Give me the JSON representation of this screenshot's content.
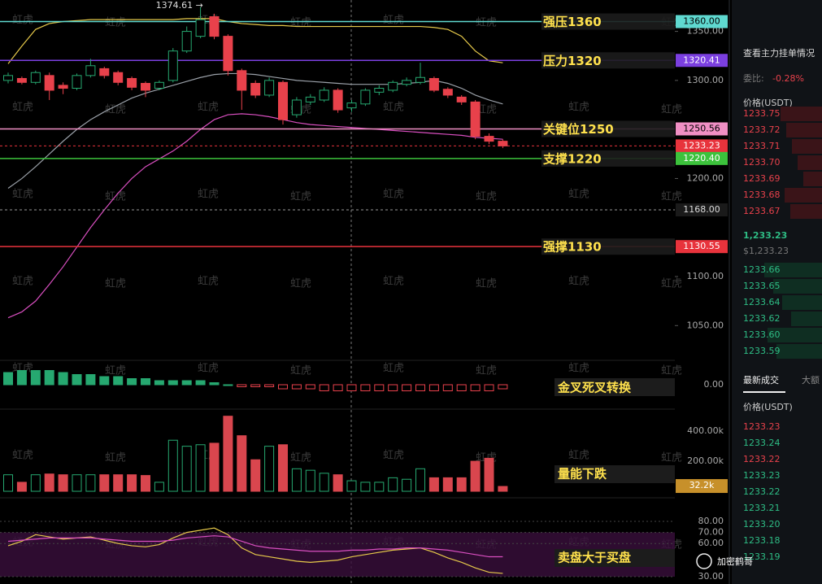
{
  "price_chart": {
    "ylim": [
      1032,
      1382
    ],
    "yticks": [
      {
        "value": 1350,
        "label": "1350.00"
      },
      {
        "value": 1300,
        "label": "1300.00"
      },
      {
        "value": 1200,
        "label": "1200.00"
      },
      {
        "value": 1100,
        "label": "1100.00"
      },
      {
        "value": 1050,
        "label": "1050.00"
      }
    ],
    "high_label": "1374.61 →",
    "candles": [
      {
        "o": 1300,
        "c": 1305,
        "h": 1308,
        "l": 1297
      },
      {
        "o": 1302,
        "c": 1298,
        "h": 1304,
        "l": 1296
      },
      {
        "o": 1298,
        "c": 1308,
        "h": 1310,
        "l": 1296
      },
      {
        "o": 1305,
        "c": 1290,
        "h": 1308,
        "l": 1280
      },
      {
        "o": 1295,
        "c": 1292,
        "h": 1298,
        "l": 1286
      },
      {
        "o": 1292,
        "c": 1305,
        "h": 1307,
        "l": 1290
      },
      {
        "o": 1305,
        "c": 1315,
        "h": 1322,
        "l": 1303
      },
      {
        "o": 1312,
        "c": 1305,
        "h": 1314,
        "l": 1302
      },
      {
        "o": 1308,
        "c": 1298,
        "h": 1310,
        "l": 1295
      },
      {
        "o": 1302,
        "c": 1293,
        "h": 1304,
        "l": 1290
      },
      {
        "o": 1297,
        "c": 1290,
        "h": 1299,
        "l": 1283
      },
      {
        "o": 1292,
        "c": 1298,
        "h": 1300,
        "l": 1290
      },
      {
        "o": 1300,
        "c": 1330,
        "h": 1333,
        "l": 1298
      },
      {
        "o": 1330,
        "c": 1350,
        "h": 1355,
        "l": 1328
      },
      {
        "o": 1345,
        "c": 1362,
        "h": 1374.61,
        "l": 1343
      },
      {
        "o": 1365,
        "c": 1345,
        "h": 1368,
        "l": 1342
      },
      {
        "o": 1345,
        "c": 1310,
        "h": 1347,
        "l": 1305
      },
      {
        "o": 1310,
        "c": 1290,
        "h": 1312,
        "l": 1270
      },
      {
        "o": 1297,
        "c": 1285,
        "h": 1300,
        "l": 1282
      },
      {
        "o": 1285,
        "c": 1300,
        "h": 1303,
        "l": 1283
      },
      {
        "o": 1298,
        "c": 1260,
        "h": 1300,
        "l": 1255
      },
      {
        "o": 1265,
        "c": 1280,
        "h": 1283,
        "l": 1262
      },
      {
        "o": 1278,
        "c": 1283,
        "h": 1286,
        "l": 1275
      },
      {
        "o": 1280,
        "c": 1290,
        "h": 1293,
        "l": 1278
      },
      {
        "o": 1290,
        "c": 1270,
        "h": 1292,
        "l": 1267
      },
      {
        "o": 1272,
        "c": 1277,
        "h": 1280,
        "l": 1268
      },
      {
        "o": 1276,
        "c": 1290,
        "h": 1292,
        "l": 1274
      },
      {
        "o": 1288,
        "c": 1292,
        "h": 1295,
        "l": 1285
      },
      {
        "o": 1290,
        "c": 1298,
        "h": 1300,
        "l": 1288
      },
      {
        "o": 1296,
        "c": 1300,
        "h": 1303,
        "l": 1294
      },
      {
        "o": 1298,
        "c": 1303,
        "h": 1318,
        "l": 1296
      },
      {
        "o": 1302,
        "c": 1290,
        "h": 1304,
        "l": 1288
      },
      {
        "o": 1291,
        "c": 1285,
        "h": 1293,
        "l": 1282
      },
      {
        "o": 1283,
        "c": 1278,
        "h": 1285,
        "l": 1275
      },
      {
        "o": 1278,
        "c": 1243,
        "h": 1280,
        "l": 1240
      },
      {
        "o": 1243,
        "c": 1238,
        "h": 1246,
        "l": 1235
      },
      {
        "o": 1238,
        "c": 1233.23,
        "h": 1240,
        "l": 1231
      }
    ],
    "bands": [
      {
        "color": "#e6c94a",
        "values": [
          1317,
          1335,
          1352,
          1358,
          1360,
          1361,
          1362,
          1362,
          1362,
          1362,
          1362,
          1362,
          1362,
          1363,
          1363,
          1363,
          1360,
          1358,
          1357,
          1356,
          1356,
          1355,
          1355,
          1355,
          1355,
          1355,
          1355,
          1355,
          1355,
          1355,
          1355,
          1354,
          1352,
          1345,
          1330,
          1320,
          1318
        ]
      },
      {
        "color": "#9aa0a8",
        "values": [
          1190,
          1200,
          1212,
          1225,
          1238,
          1250,
          1260,
          1268,
          1275,
          1282,
          1287,
          1291,
          1295,
          1299,
          1303,
          1306,
          1307,
          1307,
          1306,
          1304,
          1302,
          1300,
          1299,
          1298,
          1297,
          1296,
          1296,
          1296,
          1296,
          1297,
          1298,
          1300,
          1297,
          1292,
          1285,
          1280,
          1276
        ]
      },
      {
        "color": "#d94fc0",
        "values": [
          1058,
          1064,
          1075,
          1092,
          1110,
          1130,
          1150,
          1168,
          1185,
          1200,
          1212,
          1220,
          1228,
          1238,
          1250,
          1260,
          1265,
          1266,
          1265,
          1263,
          1260,
          1257,
          1255,
          1254,
          1253,
          1252,
          1251,
          1250,
          1249,
          1248,
          1247,
          1246,
          1245,
          1244,
          1242,
          1241,
          1240
        ]
      }
    ],
    "levels": [
      {
        "value": 1360,
        "label": "1360.00",
        "color": "#5fd9d0",
        "note": "强压1360"
      },
      {
        "value": 1320.41,
        "label": "1320.41",
        "color": "#7b3fe0",
        "note": "压力1320"
      },
      {
        "value": 1250.56,
        "label": "1250.56",
        "color": "#f08fc4",
        "note": "关键位1250"
      },
      {
        "value": 1233.23,
        "label": "1233.23",
        "color": "#e8333c",
        "dashed": true
      },
      {
        "value": 1220.4,
        "label": "1220.40",
        "color": "#3cc23c",
        "note": "支撑1220"
      },
      {
        "value": 1168,
        "label": "1168.00",
        "color": "#9a9a9a",
        "dashed": true,
        "crosshair": true
      },
      {
        "value": 1130.55,
        "label": "1130.55",
        "color": "#e8333c",
        "note": "强撑1130"
      }
    ]
  },
  "macd": {
    "ylim": [
      -10,
      10
    ],
    "yticks": [
      {
        "value": 0,
        "label": "0.00"
      }
    ],
    "note": "金叉死叉转换",
    "values": [
      6,
      7,
      7,
      7,
      6,
      5,
      5,
      4,
      4,
      3,
      3,
      2,
      2,
      2,
      2,
      1,
      0,
      -1,
      -1,
      -1,
      -2,
      -2,
      -2,
      -3,
      -3,
      -3,
      -3,
      -3,
      -3,
      -3,
      -3,
      -3,
      -3,
      -3,
      -3,
      -3,
      -2
    ]
  },
  "volume": {
    "ylim": [
      0,
      520000
    ],
    "yticks": [
      {
        "value": 400000,
        "label": "400.00k"
      },
      {
        "value": 200000,
        "label": "200.00k"
      }
    ],
    "note": "量能下跌",
    "current": {
      "value": 32200,
      "label": "32.2k"
    },
    "values": [
      110000,
      60000,
      110000,
      115000,
      110000,
      110000,
      110000,
      110000,
      110000,
      110000,
      105000,
      60000,
      340000,
      300000,
      310000,
      320000,
      500000,
      370000,
      210000,
      300000,
      310000,
      150000,
      140000,
      120000,
      110000,
      70000,
      60000,
      60000,
      90000,
      80000,
      150000,
      90000,
      90000,
      90000,
      200000,
      220000,
      32200
    ]
  },
  "rsi": {
    "ylim": [
      23.4,
      90
    ],
    "yticks": [
      {
        "value": 80,
        "label": "80.00"
      },
      {
        "value": 70,
        "label": "70.00"
      },
      {
        "value": 60,
        "label": "60.00"
      },
      {
        "value": 30,
        "label": "30.00"
      }
    ],
    "band": [
      30,
      70
    ],
    "note": "卖盘大于买盘",
    "series": [
      {
        "color": "#e6c94a",
        "values": [
          58,
          62,
          68,
          66,
          64,
          65,
          66,
          63,
          60,
          58,
          57,
          59,
          65,
          70,
          72,
          74,
          68,
          56,
          50,
          48,
          46,
          44,
          43,
          44,
          45,
          48,
          50,
          52,
          54,
          55,
          56,
          52,
          47,
          43,
          38,
          34,
          33
        ]
      },
      {
        "color": "#d94fc0",
        "values": [
          62,
          63,
          64,
          65,
          65,
          65,
          65,
          64,
          63,
          62,
          62,
          62,
          63,
          65,
          66,
          67,
          66,
          62,
          58,
          56,
          55,
          54,
          53,
          53,
          53,
          54,
          54,
          55,
          55,
          56,
          56,
          55,
          54,
          52,
          50,
          48,
          48
        ]
      }
    ]
  },
  "watermark": "虹虎",
  "side_panel": {
    "link": "查看主力挂单情况",
    "ratio_label": "委比:",
    "ratio_value": "-0.28%",
    "price_header": "价格(USDT)",
    "asks": [
      "1233.75",
      "1233.72",
      "1233.71",
      "1233.70",
      "1233.69",
      "1233.68",
      "1233.67"
    ],
    "last_price": "1,233.23",
    "last_price_usd": "$1,233.23",
    "bids": [
      "1233.66",
      "1233.65",
      "1233.64",
      "1233.62",
      "1233.60",
      "1233.59"
    ],
    "tabs": [
      "最新成交",
      "大额"
    ],
    "trades_header": "价格(USDT)",
    "trades": [
      {
        "price": "1233.23",
        "side": "sell"
      },
      {
        "price": "1233.24",
        "side": "buy"
      },
      {
        "price": "1233.22",
        "side": "sell"
      },
      {
        "price": "1233.23",
        "side": "buy"
      },
      {
        "price": "1233.22",
        "side": "buy"
      },
      {
        "price": "1233.21",
        "side": "buy"
      },
      {
        "price": "1233.20",
        "side": "buy"
      },
      {
        "price": "1233.18",
        "side": "buy"
      },
      {
        "price": "1233.19",
        "side": "buy"
      }
    ]
  },
  "author": "加密鹤哥"
}
